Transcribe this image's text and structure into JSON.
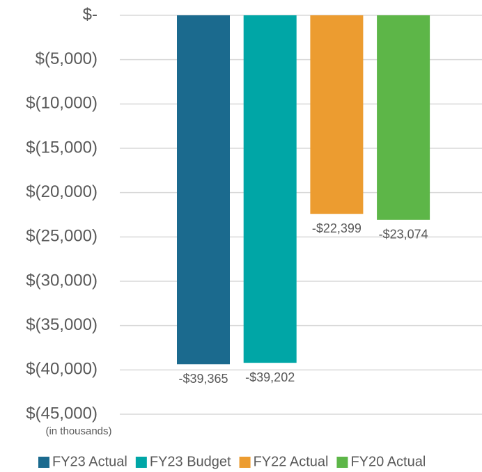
{
  "chart_data": {
    "type": "bar",
    "series": [
      {
        "name": "FY23 Actual",
        "color": "#1b6a8e",
        "values": [
          -39365
        ],
        "value_labels": [
          "-$39,365"
        ]
      },
      {
        "name": "FY23 Budget",
        "color": "#00a6a6",
        "values": [
          -39202
        ],
        "value_labels": [
          "-$39,202"
        ]
      },
      {
        "name": "FY22 Actual",
        "color": "#ec9c30",
        "values": [
          -22399
        ],
        "value_labels": [
          "-$22,399"
        ]
      },
      {
        "name": "FY20 Actual",
        "color": "#5db648",
        "values": [
          -23074
        ],
        "value_labels": [
          "-$23,074"
        ]
      }
    ],
    "ylim": [
      -45000,
      0
    ],
    "yticks": [
      {
        "value": 0,
        "label": "$-"
      },
      {
        "value": -5000,
        "label": "$(5,000)"
      },
      {
        "value": -10000,
        "label": "$(10,000)"
      },
      {
        "value": -15000,
        "label": "$(15,000)"
      },
      {
        "value": -20000,
        "label": "$(20,000)"
      },
      {
        "value": -25000,
        "label": "$(25,000)"
      },
      {
        "value": -30000,
        "label": "$(30,000)"
      },
      {
        "value": -35000,
        "label": "$(35,000)"
      },
      {
        "value": -40000,
        "label": "$(40,000)"
      },
      {
        "value": -45000,
        "label": "$(45,000)"
      }
    ],
    "annotation": "(in thousands)",
    "grid": true,
    "legend": "bottom"
  }
}
